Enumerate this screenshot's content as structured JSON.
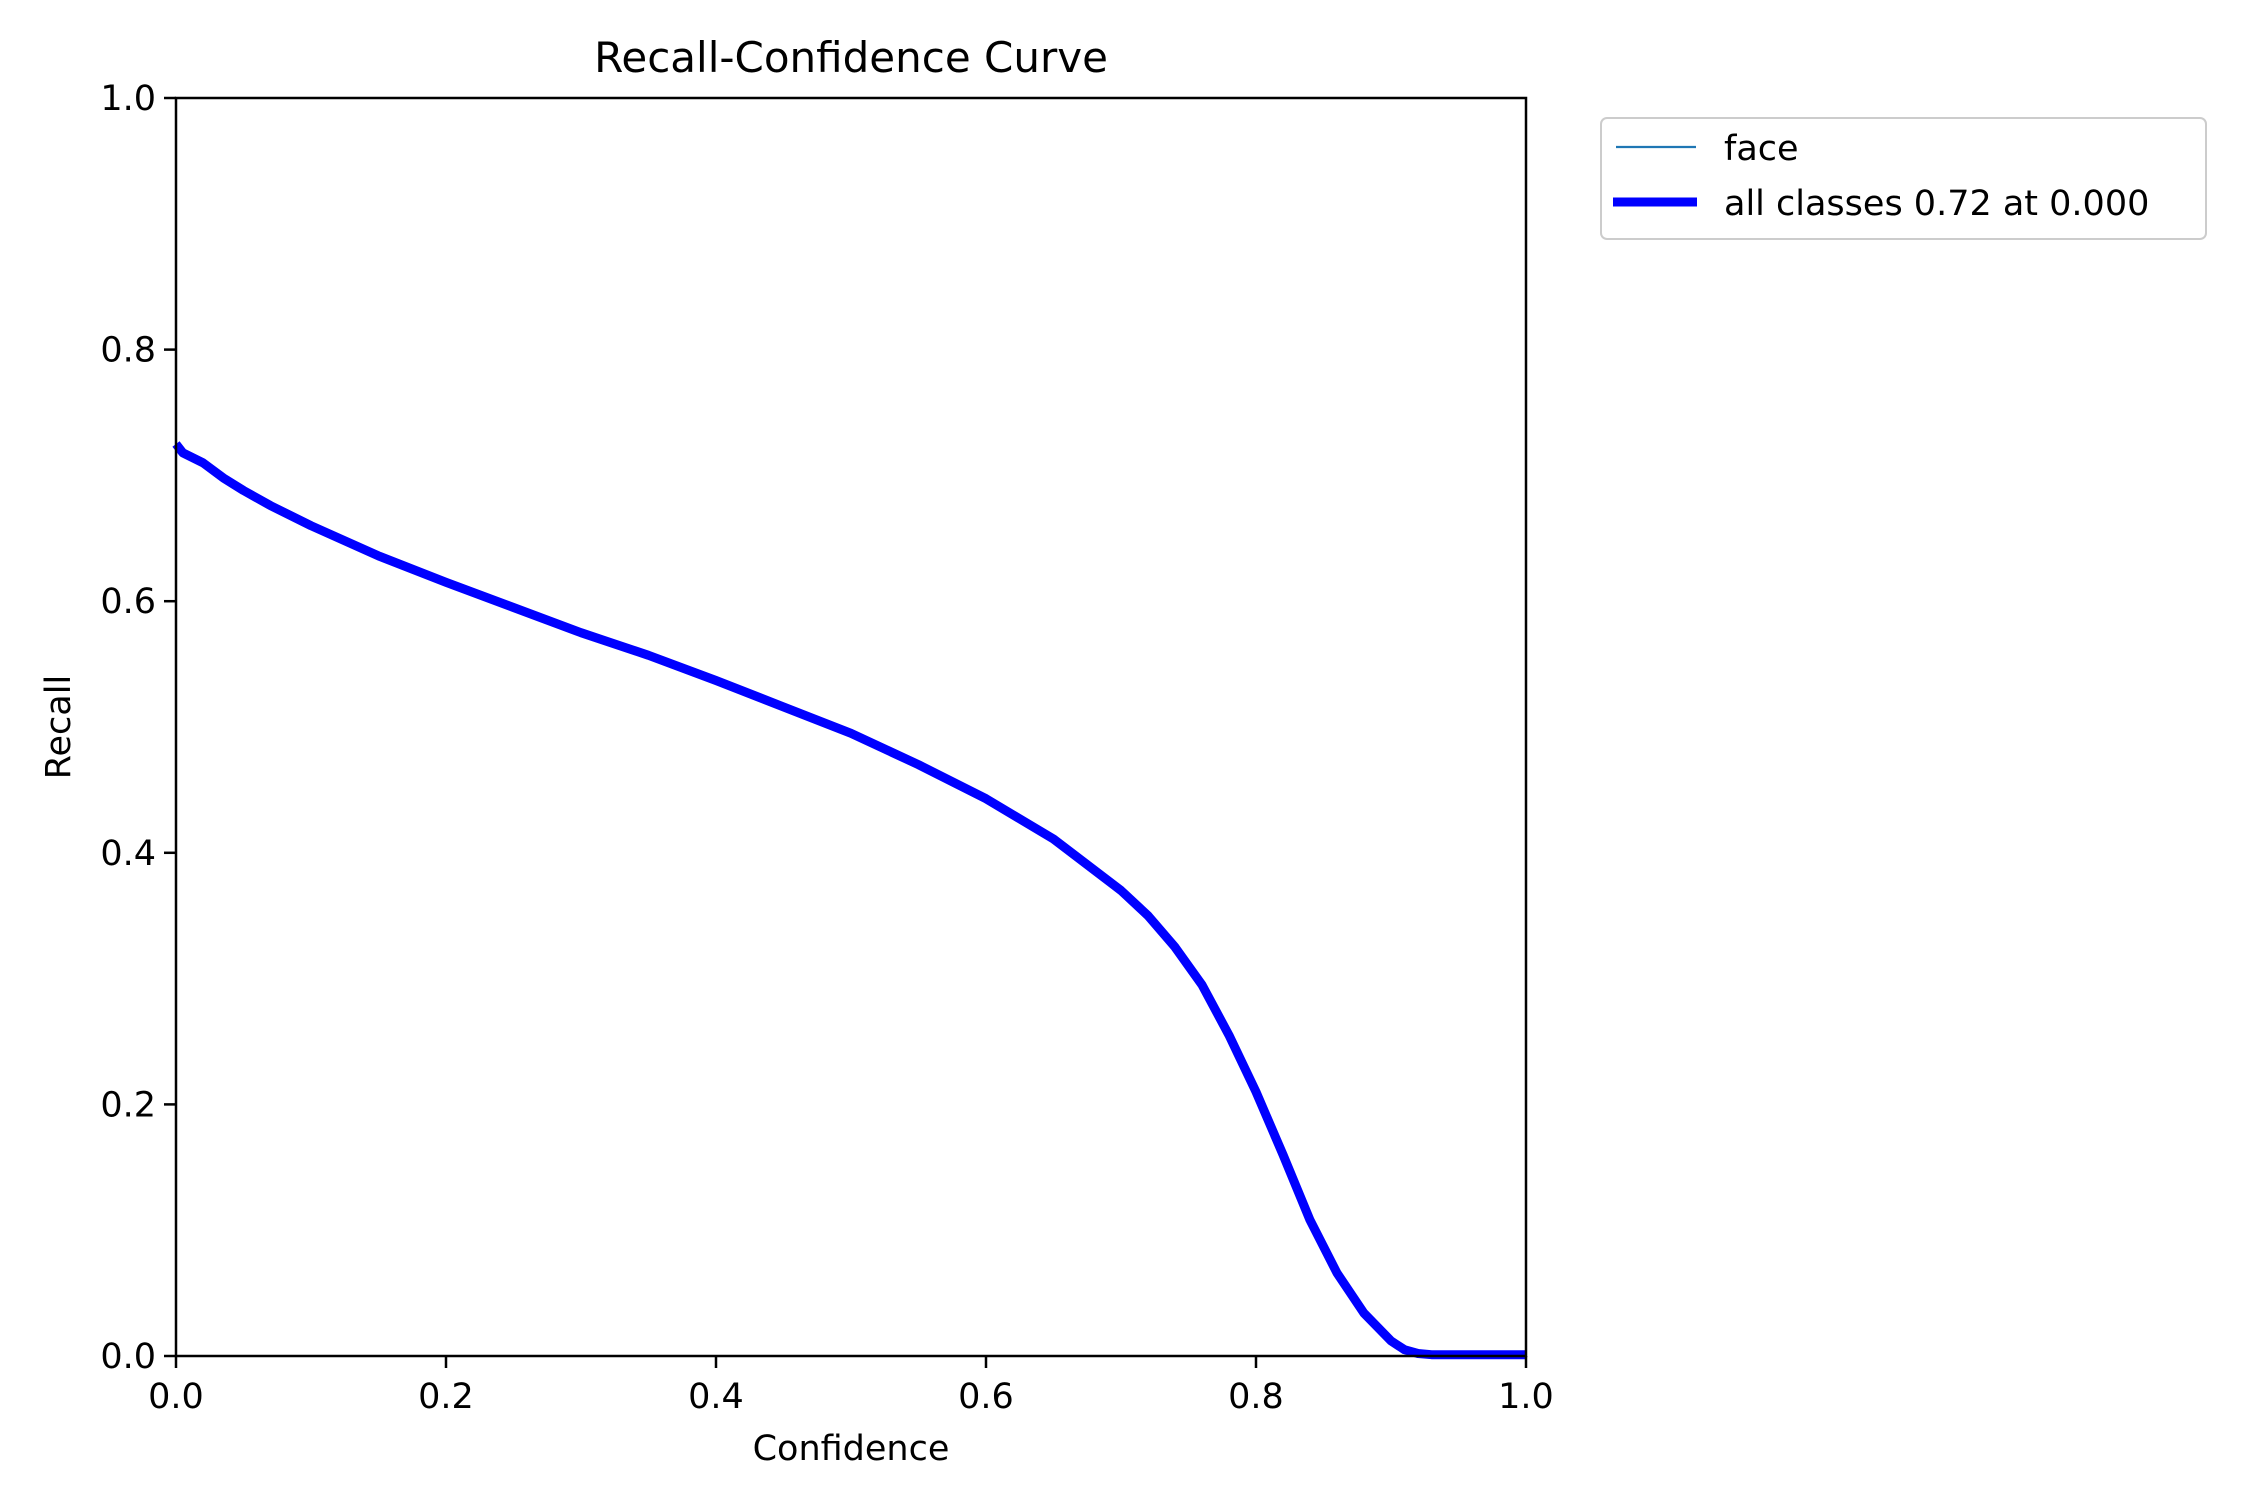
{
  "chart_data": {
    "type": "line",
    "title": "Recall-Confidence Curve",
    "xlabel": "Confidence",
    "ylabel": "Recall",
    "xlim": [
      0,
      1
    ],
    "ylim": [
      0,
      1
    ],
    "xticks": [
      "0.0",
      "0.2",
      "0.4",
      "0.6",
      "0.8",
      "1.0"
    ],
    "yticks": [
      "0.0",
      "0.2",
      "0.4",
      "0.6",
      "0.8",
      "1.0"
    ],
    "grid": false,
    "legend": {
      "placement": "outside-top-right",
      "entries": [
        "face",
        "all classes 0.72 at 0.000"
      ]
    },
    "series": [
      {
        "name": "face",
        "color": "#1f77b4",
        "style": "thin",
        "x": [
          0.0,
          0.005,
          0.02,
          0.035,
          0.05,
          0.07,
          0.1,
          0.15,
          0.2,
          0.25,
          0.3,
          0.35,
          0.4,
          0.45,
          0.5,
          0.55,
          0.6,
          0.65,
          0.7,
          0.72,
          0.74,
          0.76,
          0.78,
          0.8,
          0.82,
          0.84,
          0.86,
          0.88,
          0.9,
          0.91,
          0.92,
          0.93,
          0.95,
          0.97,
          1.0
        ],
        "y": [
          0.725,
          0.718,
          0.71,
          0.698,
          0.688,
          0.676,
          0.66,
          0.636,
          0.615,
          0.595,
          0.575,
          0.557,
          0.537,
          0.516,
          0.495,
          0.47,
          0.443,
          0.411,
          0.37,
          0.35,
          0.325,
          0.295,
          0.255,
          0.21,
          0.16,
          0.108,
          0.066,
          0.034,
          0.012,
          0.005,
          0.002,
          0.001,
          0.001,
          0.001,
          0.001
        ]
      },
      {
        "name": "all classes 0.72 at 0.000",
        "color": "#0000ff",
        "style": "thick",
        "x": [
          0.0,
          0.005,
          0.02,
          0.035,
          0.05,
          0.07,
          0.1,
          0.15,
          0.2,
          0.25,
          0.3,
          0.35,
          0.4,
          0.45,
          0.5,
          0.55,
          0.6,
          0.65,
          0.7,
          0.72,
          0.74,
          0.76,
          0.78,
          0.8,
          0.82,
          0.84,
          0.86,
          0.88,
          0.9,
          0.91,
          0.92,
          0.93,
          0.95,
          0.97,
          1.0
        ],
        "y": [
          0.725,
          0.718,
          0.71,
          0.698,
          0.688,
          0.676,
          0.66,
          0.636,
          0.615,
          0.595,
          0.575,
          0.557,
          0.537,
          0.516,
          0.495,
          0.47,
          0.443,
          0.411,
          0.37,
          0.35,
          0.325,
          0.295,
          0.255,
          0.21,
          0.16,
          0.108,
          0.066,
          0.034,
          0.012,
          0.005,
          0.002,
          0.001,
          0.001,
          0.001,
          0.001
        ]
      }
    ]
  }
}
